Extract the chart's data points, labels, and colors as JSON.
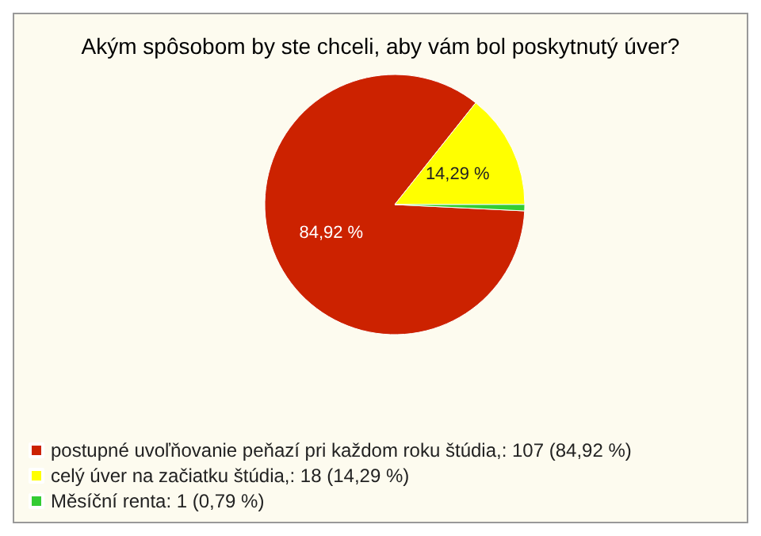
{
  "chart_data": {
    "type": "pie",
    "title": "Akým spôsobom by ste chceli, aby vám bol poskytnutý úver?",
    "categories": [
      "postupné uvoľňovanie peňazí pri každom roku štúdia,: 107 (84,92 %)",
      "celý úver na začiatku štúdia,: 18 (14,29 %)",
      "Měsíční renta: 1 (0,79 %)"
    ],
    "values": [
      84.92,
      14.29,
      0.79
    ],
    "colors": [
      "#cc2200",
      "#ffff00",
      "#33cc33"
    ],
    "value_labels": [
      "84,92 %",
      "14,29 %",
      null
    ],
    "legend": "bottom left"
  }
}
